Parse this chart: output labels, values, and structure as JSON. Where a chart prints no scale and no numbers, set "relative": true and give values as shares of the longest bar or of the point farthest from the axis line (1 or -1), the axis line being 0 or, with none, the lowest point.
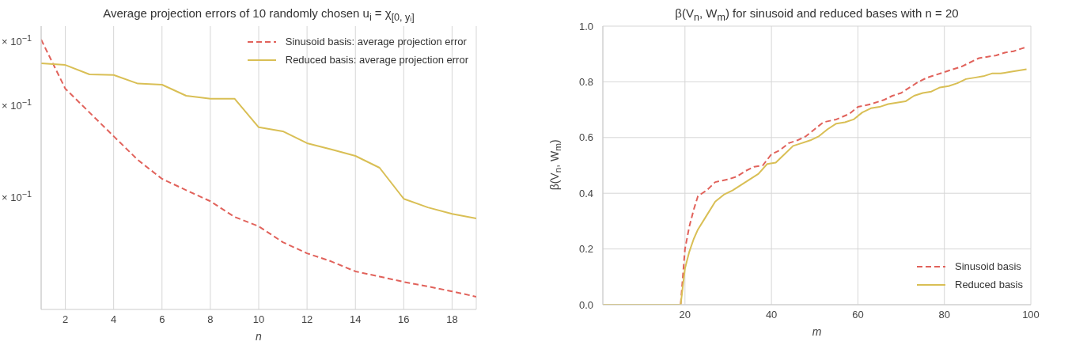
{
  "chart_data": [
    {
      "type": "line",
      "title": "Average projection errors of 10 randomly chosen u$_{i}$ = χ$_{[0, yᵢ]}$",
      "xlabel": "n",
      "x": [
        1,
        2,
        3,
        4,
        5,
        6,
        7,
        8,
        9,
        10,
        11,
        12,
        13,
        14,
        15,
        16,
        17,
        18,
        19
      ],
      "xlim": [
        1,
        19
      ],
      "xticks": [
        2,
        4,
        6,
        8,
        10,
        12,
        14,
        16,
        18
      ],
      "relative": true,
      "annotations": [
        "× 10$^{−1}$",
        "× 10$^{−1}$",
        "× 10$^{−1}$"
      ],
      "grid": "x",
      "legend": "top right",
      "series": [
        {
          "name": "Sinusoid basis: average projection error",
          "color": "#e1625b",
          "line_style": "dashed",
          "values": [
            1,
            0.818,
            0.73,
            0.642,
            0.554,
            0.484,
            0.442,
            0.401,
            0.343,
            0.308,
            0.249,
            0.208,
            0.178,
            0.141,
            0.122,
            0.102,
            0.085,
            0.067,
            0.047
          ]
        },
        {
          "name": "Reduced basis: average projection error",
          "color": "#d9bf55",
          "line_style": "solid",
          "values": [
            0.912,
            0.906,
            0.871,
            0.869,
            0.837,
            0.833,
            0.792,
            0.781,
            0.781,
            0.675,
            0.66,
            0.616,
            0.593,
            0.569,
            0.525,
            0.41,
            0.378,
            0.354,
            0.337
          ]
        }
      ]
    },
    {
      "type": "line",
      "title": "β(V$_{n}$, W$_{m}$) for sinusoid and reduced bases with n = 20",
      "xlabel": "m",
      "ylabel": "β(V$_{n}$, W$_{m}$)",
      "xlim": [
        1,
        100
      ],
      "xticks": [
        20,
        40,
        60,
        80,
        100
      ],
      "ylim": [
        0,
        1
      ],
      "yticks": [
        {
          "value": 0,
          "label": "0.0"
        },
        0.2,
        0.4,
        0.6,
        0.8,
        {
          "value": 1,
          "label": "1.0"
        }
      ],
      "grid": true,
      "legend": "bottom right",
      "series": [
        {
          "name": "Sinusoid basis",
          "color": "#e1625b",
          "line_style": "dashed",
          "x": [
            1,
            19,
            20,
            21,
            22,
            23,
            25,
            27,
            30,
            32,
            34,
            36,
            38,
            40,
            42,
            44,
            46,
            48,
            50,
            52,
            55,
            58,
            60,
            63,
            66,
            68,
            70,
            72,
            74,
            76,
            78,
            80,
            82,
            84,
            86,
            88,
            90,
            92,
            94,
            96,
            98,
            99
          ],
          "values": [
            0,
            0,
            0.2,
            0.28,
            0.34,
            0.39,
            0.41,
            0.44,
            0.45,
            0.46,
            0.48,
            0.495,
            0.5,
            0.54,
            0.555,
            0.58,
            0.59,
            0.605,
            0.63,
            0.655,
            0.665,
            0.685,
            0.71,
            0.72,
            0.735,
            0.75,
            0.76,
            0.78,
            0.8,
            0.815,
            0.825,
            0.835,
            0.845,
            0.855,
            0.87,
            0.885,
            0.89,
            0.895,
            0.905,
            0.91,
            0.92,
            0.925
          ]
        },
        {
          "name": "Reduced basis",
          "color": "#d9bf55",
          "line_style": "solid",
          "x": [
            1,
            19,
            20,
            21,
            22,
            23,
            25,
            27,
            29,
            31,
            33,
            35,
            37,
            39,
            41,
            43,
            45,
            47,
            49,
            51,
            53,
            55,
            57,
            59,
            61,
            63,
            65,
            67,
            69,
            71,
            73,
            75,
            77,
            79,
            81,
            83,
            85,
            87,
            89,
            91,
            93,
            95,
            97,
            99
          ],
          "values": [
            0,
            0,
            0.13,
            0.19,
            0.235,
            0.27,
            0.32,
            0.37,
            0.395,
            0.41,
            0.43,
            0.45,
            0.47,
            0.505,
            0.51,
            0.54,
            0.57,
            0.58,
            0.59,
            0.605,
            0.63,
            0.65,
            0.655,
            0.665,
            0.69,
            0.705,
            0.71,
            0.72,
            0.725,
            0.73,
            0.75,
            0.76,
            0.765,
            0.78,
            0.785,
            0.795,
            0.81,
            0.815,
            0.82,
            0.83,
            0.83,
            0.835,
            0.84,
            0.845
          ]
        }
      ]
    }
  ]
}
